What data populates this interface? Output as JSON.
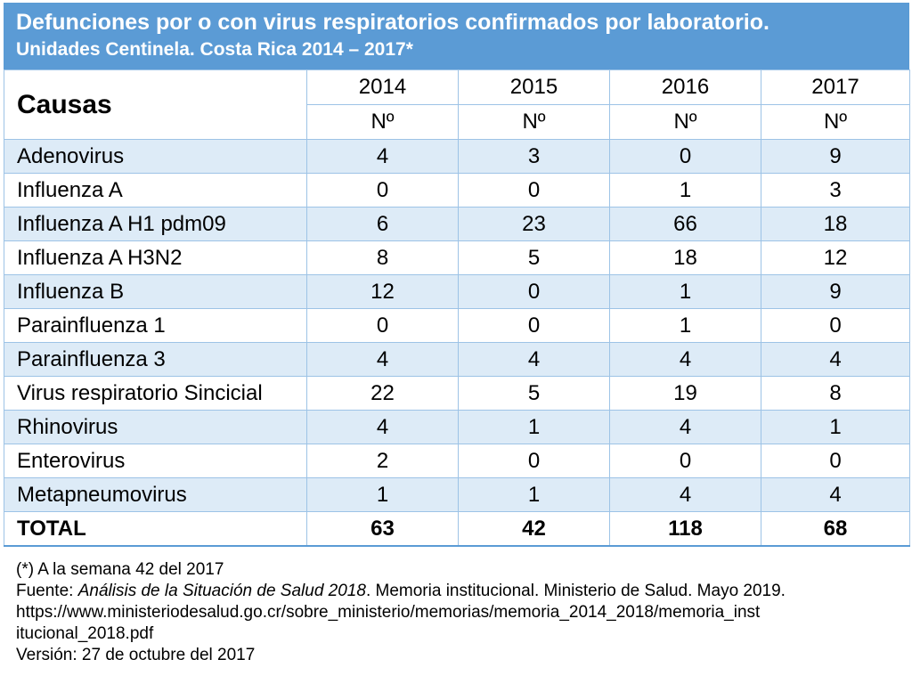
{
  "title": {
    "line1": "Defunciones por o con virus respiratorios confirmados por laboratorio.",
    "line2": "Unidades Centinela. Costa Rica 2014 – 2017*"
  },
  "table": {
    "causas_header": "Causas",
    "years": [
      "2014",
      "2015",
      "2016",
      "2017"
    ],
    "sub_header": "Nº",
    "rows": [
      {
        "cause": "Adenovirus",
        "values": [
          "4",
          "3",
          "0",
          "9"
        ]
      },
      {
        "cause": "Influenza A",
        "values": [
          "0",
          "0",
          "1",
          "3"
        ]
      },
      {
        "cause": "Influenza A H1 pdm09",
        "values": [
          "6",
          "23",
          "66",
          "18"
        ]
      },
      {
        "cause": "Influenza A H3N2",
        "values": [
          "8",
          "5",
          "18",
          "12"
        ]
      },
      {
        "cause": "Influenza B",
        "values": [
          "12",
          "0",
          "1",
          "9"
        ]
      },
      {
        "cause": "Parainfluenza 1",
        "values": [
          "0",
          "0",
          "1",
          "0"
        ]
      },
      {
        "cause": "Parainfluenza 3",
        "values": [
          "4",
          "4",
          "4",
          "4"
        ]
      },
      {
        "cause": "Virus respiratorio Sincicial",
        "values": [
          "22",
          "5",
          "19",
          "8"
        ]
      },
      {
        "cause": "Rhinovirus",
        "values": [
          "4",
          "1",
          "4",
          "1"
        ]
      },
      {
        "cause": "Enterovirus",
        "values": [
          "2",
          "0",
          "0",
          "0"
        ]
      },
      {
        "cause": "Metapneumovirus",
        "values": [
          "1",
          "1",
          "4",
          "4"
        ]
      }
    ],
    "total": {
      "label": "TOTAL",
      "values": [
        "63",
        "42",
        "118",
        "68"
      ]
    }
  },
  "notes": {
    "footnote": "(*) A la semana 42 del 2017",
    "source_prefix": "Fuente: ",
    "source_title": "Análisis de la Situación de Salud 2018",
    "source_rest": ". Memoria institucional. Ministerio de Salud. Mayo 2019.",
    "url_line1": "https://www.ministeriodesalud.go.cr/sobre_ministerio/memorias/memoria_2014_2018/memoria_inst",
    "url_line2": "itucional_2018.pdf",
    "version": "Versión: 27 de octubre del 2017"
  },
  "colors": {
    "header_blue": "#5b9bd5",
    "band_light_blue": "#ddebf7",
    "grid_line": "#9dc3e6"
  }
}
